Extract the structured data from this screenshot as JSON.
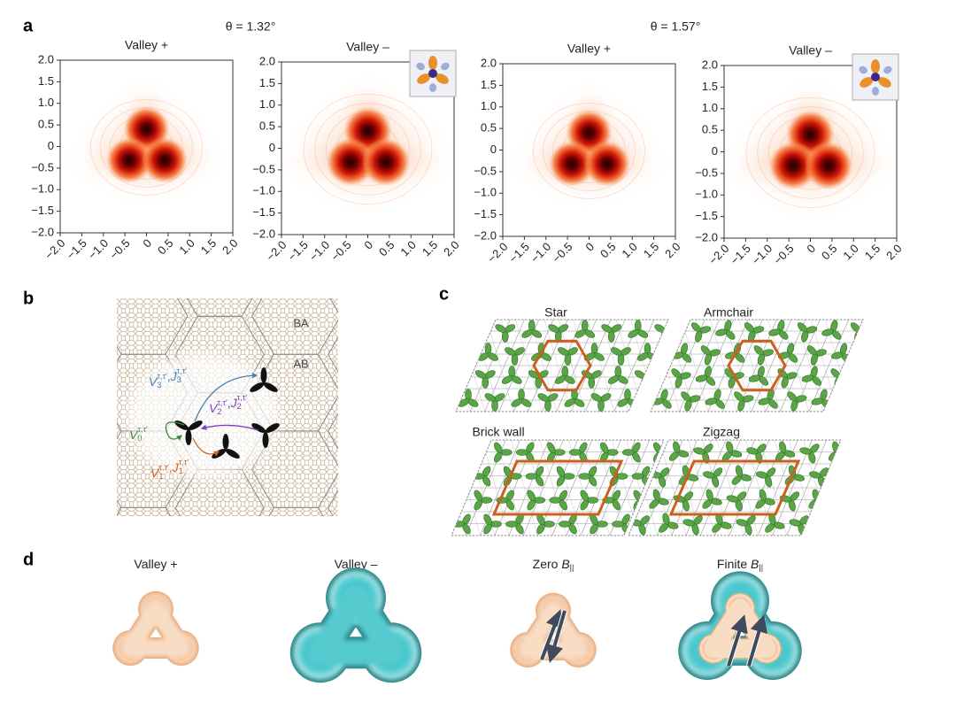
{
  "panel_a": {
    "label": "a",
    "groups": [
      "θ = 1.32°",
      "θ = 1.57°"
    ],
    "plots": [
      "Valley +",
      "Valley –",
      "Valley +",
      "Valley –"
    ],
    "ticks": [
      "−2.0",
      "−1.5",
      "−1.0",
      "−0.5",
      "0",
      "0.5",
      "1.0",
      "1.5",
      "2.0"
    ]
  },
  "panel_b": {
    "label": "b",
    "regions": [
      "BA",
      "AB"
    ],
    "separator": ",",
    "couplings": [
      {
        "terms": [
          {
            "sym": "V",
            "sub": "3",
            "sup": "τ,τ′"
          },
          {
            "sym": "J",
            "sub": "3",
            "sup": "τ,τ′"
          }
        ]
      },
      {
        "terms": [
          {
            "sym": "V",
            "sub": "2",
            "sup": "τ,τ′"
          },
          {
            "sym": "J",
            "sub": "2",
            "sup": "τ,τ′"
          }
        ]
      },
      {
        "terms": [
          {
            "sym": "V",
            "sub": "0",
            "sup": "τ,τ′"
          }
        ]
      },
      {
        "terms": [
          {
            "sym": "V",
            "sub": "1",
            "sup": "τ,τ′"
          },
          {
            "sym": "J",
            "sub": "1",
            "sup": "τ,τ′"
          }
        ]
      }
    ]
  },
  "panel_c": {
    "label": "c",
    "orders": [
      "Star",
      "Armchair",
      "Brick wall",
      "Zigzag"
    ]
  },
  "panel_d": {
    "label": "d",
    "states": [
      {
        "text": "Valley +"
      },
      {
        "text": "Valley –"
      },
      {
        "text": "Zero ",
        "sym": "B",
        "sub": "||"
      },
      {
        "text": "Finite ",
        "sym": "B",
        "sub": "||"
      }
    ]
  }
}
